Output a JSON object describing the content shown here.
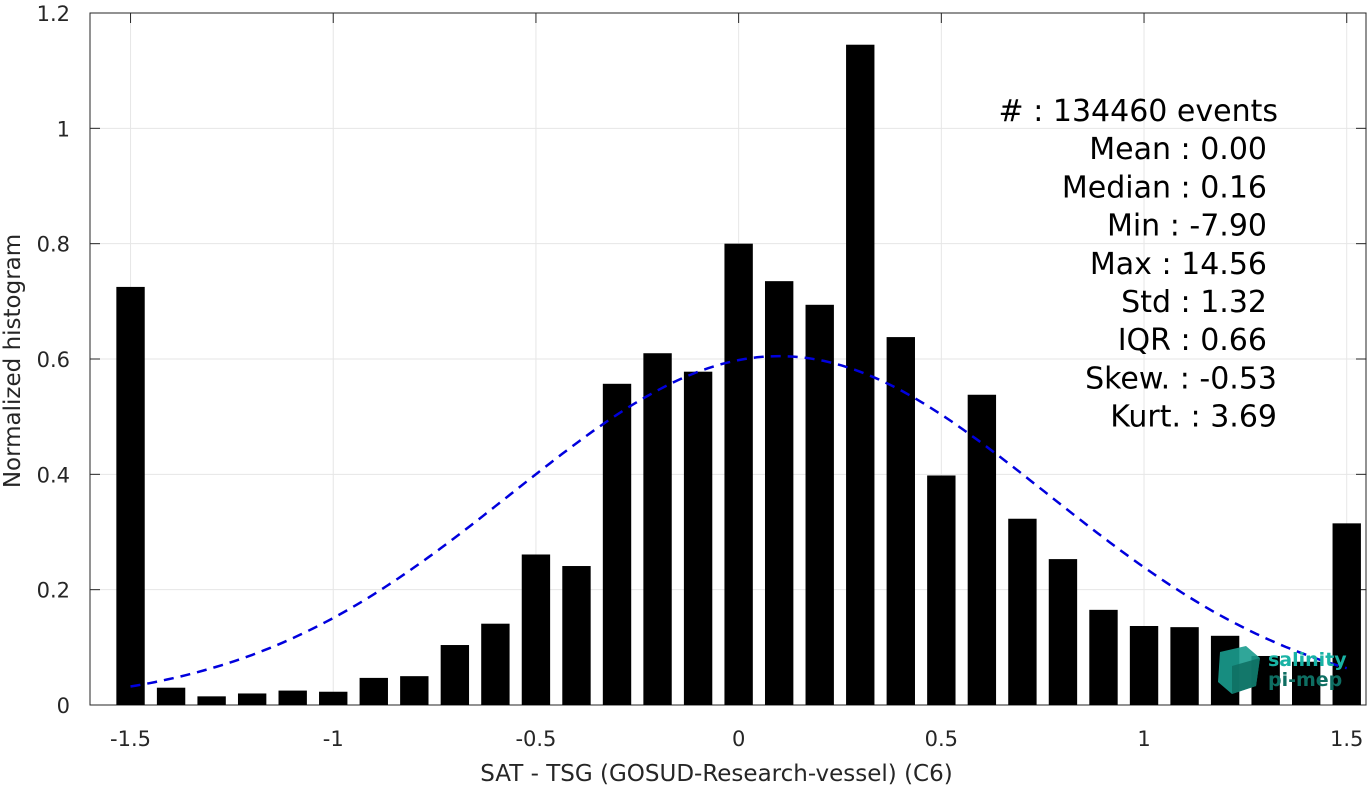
{
  "chart_data": {
    "type": "bar",
    "xlabel": "SAT - TSG (GOSUD-Research-vessel) (C6)",
    "ylabel": "Normalized histogram",
    "xlim": [
      -1.6,
      1.55
    ],
    "ylim": [
      0,
      1.2
    ],
    "grid": true,
    "x_ticks": [
      -1.5,
      -1,
      -0.5,
      0,
      0.5,
      1,
      1.5
    ],
    "x_tick_labels": [
      "-1.5",
      "-1",
      "-0.5",
      "0",
      "0.5",
      "1",
      "1.5"
    ],
    "y_ticks": [
      0,
      0.2,
      0.4,
      0.6,
      0.8,
      1,
      1.2
    ],
    "y_tick_labels": [
      "0",
      "0.2",
      "0.4",
      "0.6",
      "0.8",
      "1",
      "1.2"
    ],
    "bar_width": 0.07,
    "x": [
      -1.5,
      -1.4,
      -1.3,
      -1.2,
      -1.1,
      -1.0,
      -0.9,
      -0.8,
      -0.7,
      -0.6,
      -0.5,
      -0.4,
      -0.3,
      -0.2,
      -0.1,
      0.0,
      0.1,
      0.2,
      0.3,
      0.4,
      0.5,
      0.6,
      0.7,
      0.8,
      0.9,
      1.0,
      1.1,
      1.2,
      1.3,
      1.4,
      1.5
    ],
    "values": [
      0.725,
      0.03,
      0.015,
      0.02,
      0.025,
      0.023,
      0.047,
      0.05,
      0.104,
      0.141,
      0.261,
      0.241,
      0.557,
      0.61,
      0.578,
      0.8,
      0.735,
      0.694,
      1.145,
      0.638,
      0.398,
      0.538,
      0.323,
      0.253,
      0.165,
      0.137,
      0.135,
      0.12,
      0.085,
      0.075,
      0.315
    ],
    "fit": {
      "type": "gaussian",
      "style": "dashed",
      "color": "#0000dd",
      "mean": 0.1,
      "sigma": 0.66,
      "peak": 0.605,
      "x_range": [
        -1.5,
        1.5
      ]
    },
    "bar_color": "#000000",
    "stats": [
      "#  : 134460 events",
      "Mean : 0.00",
      "Median : 0.16",
      "Min : -7.90",
      "Max : 14.56",
      "Std : 1.32",
      "IQR : 0.66",
      "Skew. : -0.53",
      "Kurt. : 3.69"
    ]
  },
  "logo": {
    "line1": "salinity",
    "line2": "pi-mep",
    "color_top": "#19b3a5",
    "color_bottom": "#0e6e62"
  }
}
